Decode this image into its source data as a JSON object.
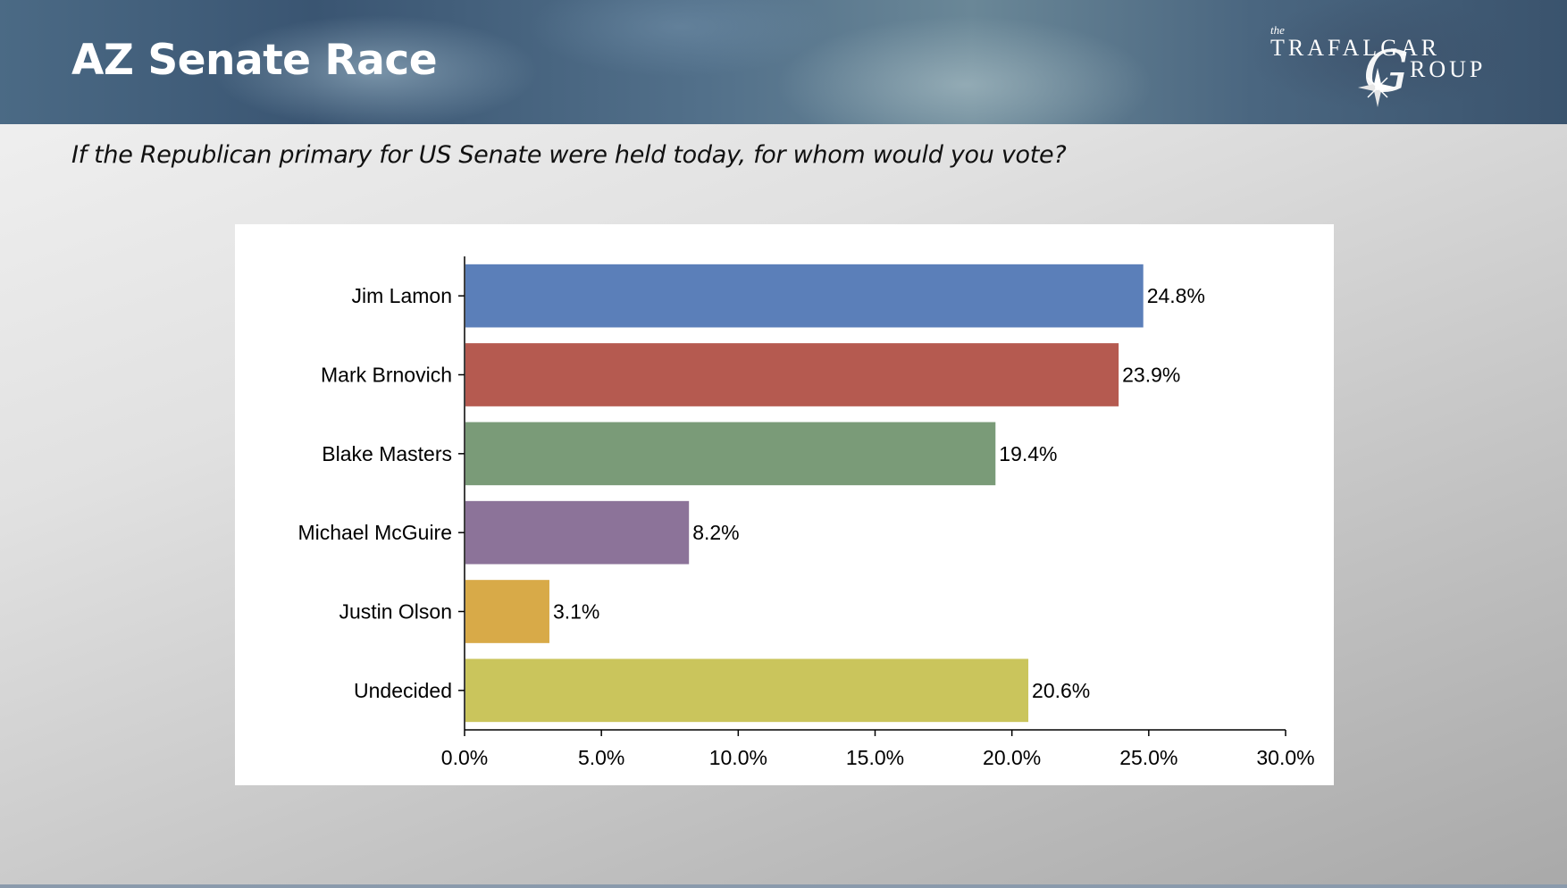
{
  "slide": {
    "title": "AZ Senate Race",
    "subtitle": "If the Republican primary for US Senate were held today, for whom would you vote?"
  },
  "logo": {
    "the": "the",
    "line1": "TRAFALGAR",
    "line2": "ROUP",
    "script_letter": "G",
    "icon": "compass-rose-icon"
  },
  "chart_data": {
    "type": "bar",
    "orientation": "horizontal",
    "categories": [
      "Jim Lamon",
      "Mark Brnovich",
      "Blake Masters",
      "Michael McGuire",
      "Justin Olson",
      "Undecided"
    ],
    "values": [
      24.8,
      23.9,
      19.4,
      8.2,
      3.1,
      20.6
    ],
    "value_labels": [
      "24.8%",
      "23.9%",
      "19.4%",
      "8.2%",
      "3.1%",
      "20.6%"
    ],
    "colors": [
      "#5b7fb9",
      "#b55a50",
      "#7a9b78",
      "#8c7399",
      "#d8aa48",
      "#cac55c"
    ],
    "xlim": [
      0,
      30
    ],
    "xticks": [
      0,
      5,
      10,
      15,
      20,
      25,
      30
    ],
    "xtick_labels": [
      "0.0%",
      "5.0%",
      "10.0%",
      "15.0%",
      "20.0%",
      "25.0%",
      "30.0%"
    ],
    "grid": false,
    "legend": "none"
  }
}
